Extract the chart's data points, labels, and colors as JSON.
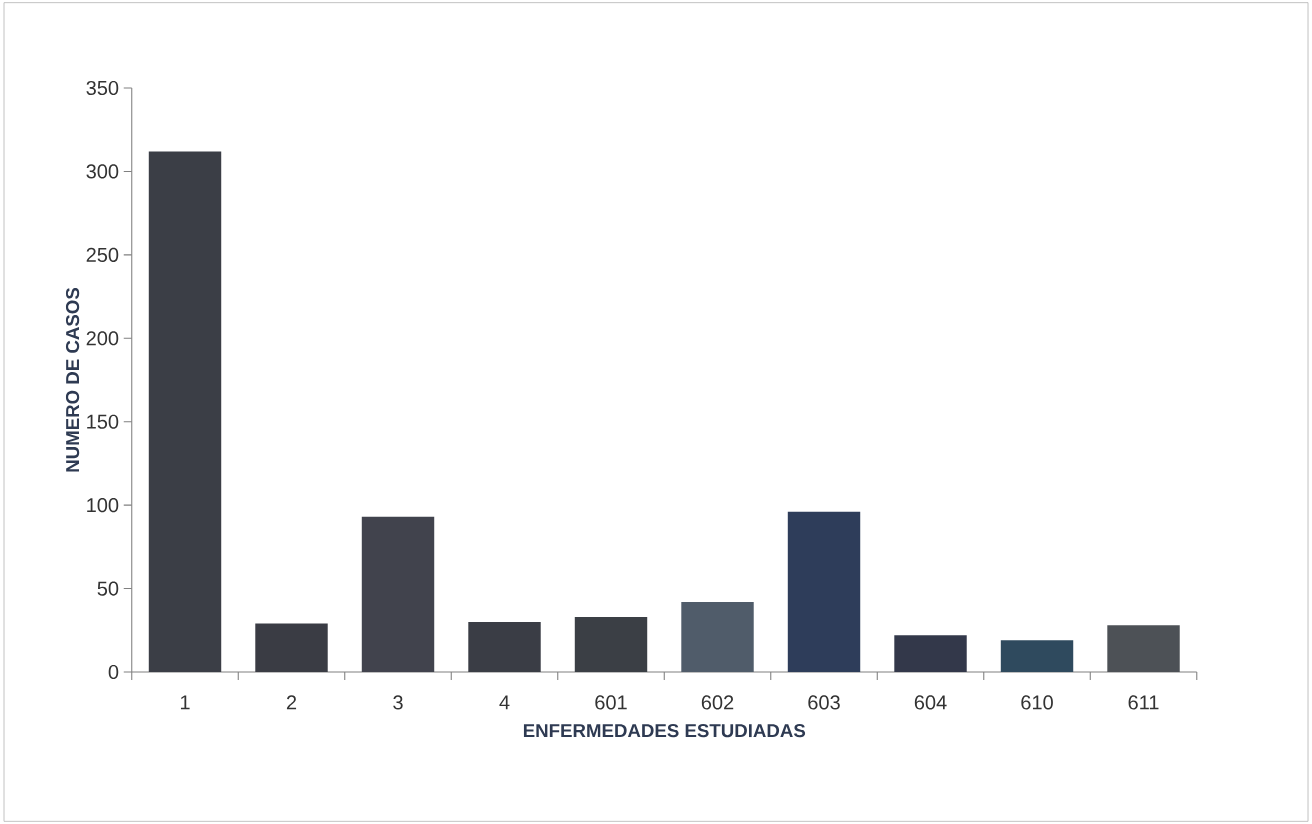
{
  "chart_data": {
    "type": "bar",
    "xlabel": "ENFERMEDADES ESTUDIADAS",
    "ylabel": "NUMERO DE CASOS",
    "categories": [
      "1",
      "2",
      "3",
      "4",
      "601",
      "602",
      "603",
      "604",
      "610",
      "611"
    ],
    "values": [
      312,
      29,
      93,
      30,
      33,
      42,
      96,
      22,
      19,
      28
    ],
    "colors": [
      "#3b3e46",
      "#3a3c44",
      "#41434d",
      "#3a3d45",
      "#3b3f45",
      "#505c6a",
      "#2e3d5a",
      "#33384a",
      "#2f4a5e",
      "#4d5156"
    ],
    "ylim": [
      0,
      350
    ],
    "yticks": [
      0,
      50,
      100,
      150,
      200,
      250,
      300,
      350
    ],
    "grid": false
  }
}
